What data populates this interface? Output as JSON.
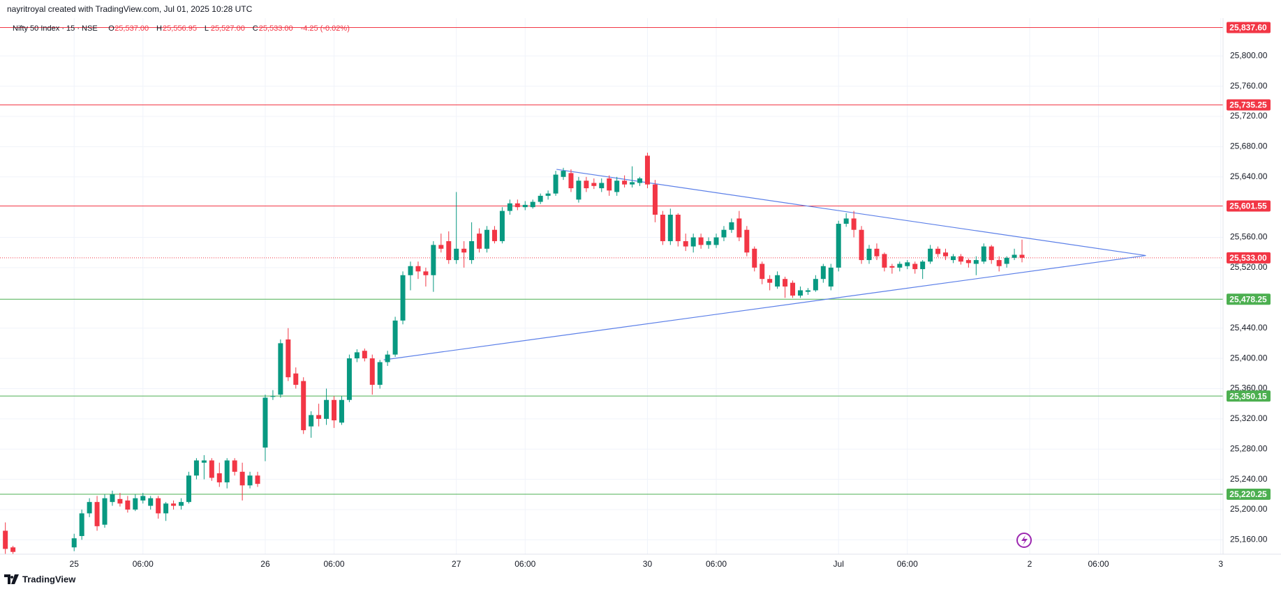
{
  "header": {
    "credit": "nayritroyal created with TradingView.com, Jul 01, 2025 10:28 UTC",
    "symbol": "Nifty 50 Index · 15 · NSE",
    "ohlc": [
      {
        "key": "O",
        "text": "25,537.00"
      },
      {
        "key": "H",
        "text": "25,556.95"
      },
      {
        "key": "L",
        "text": "25,527.00"
      },
      {
        "key": "C",
        "text": "25,533.00"
      }
    ],
    "change": "-4.25 (-0.02%)"
  },
  "footer": {
    "brand": "TradingView"
  },
  "chart_data": {
    "type": "candlestick",
    "up_color": "#089981",
    "down_color": "#f23645",
    "ylim": [
      25141,
      25850
    ],
    "xlim": [
      -9.7,
      150.3
    ],
    "grid": true,
    "yticks": [
      {
        "value": 25800,
        "label": "25,800.00"
      },
      {
        "value": 25760,
        "label": "25,760.00"
      },
      {
        "value": 25720,
        "label": "25,720.00"
      },
      {
        "value": 25680,
        "label": "25,680.00"
      },
      {
        "value": 25640,
        "label": "25,640.00"
      },
      {
        "value": 25560,
        "label": "25,560.00"
      },
      {
        "value": 25520,
        "label": "25,520.00"
      },
      {
        "value": 25440,
        "label": "25,440.00"
      },
      {
        "value": 25400,
        "label": "25,400.00"
      },
      {
        "value": 25360,
        "label": "25,360.00"
      },
      {
        "value": 25320,
        "label": "25,320.00"
      },
      {
        "value": 25280,
        "label": "25,280.00"
      },
      {
        "value": 25240,
        "label": "25,240.00"
      },
      {
        "value": 25200,
        "label": "25,200.00"
      },
      {
        "value": 25160,
        "label": "25,160.00"
      }
    ],
    "xticks": [
      {
        "value": 0,
        "label": "25"
      },
      {
        "value": 9,
        "label": "06:00"
      },
      {
        "value": 25,
        "label": "26"
      },
      {
        "value": 34,
        "label": "06:00"
      },
      {
        "value": 50,
        "label": "27"
      },
      {
        "value": 59,
        "label": "06:00"
      },
      {
        "value": 75,
        "label": "30"
      },
      {
        "value": 84,
        "label": "06:00"
      },
      {
        "value": 100,
        "label": "Jul"
      },
      {
        "value": 109,
        "label": "06:00"
      },
      {
        "value": 125,
        "label": "2"
      },
      {
        "value": 134,
        "label": "06:00"
      },
      {
        "value": 150,
        "label": "3"
      }
    ],
    "hlines": [
      {
        "value": 25837.6,
        "label": "25,837.60",
        "color": "#f23645"
      },
      {
        "value": 25735.25,
        "label": "25,735.25",
        "color": "#f23645"
      },
      {
        "value": 25601.55,
        "label": "25,601.55",
        "color": "#f23645"
      },
      {
        "value": 25478.25,
        "label": "25,478.25",
        "color": "#4caf50"
      },
      {
        "value": 25350.15,
        "label": "25,350.15",
        "color": "#4caf50"
      },
      {
        "value": 25220.25,
        "label": "25,220.25",
        "color": "#4caf50"
      }
    ],
    "last_price": {
      "value": 25533,
      "label": "25,533.00",
      "color": "#f23645"
    },
    "trendlines": [
      {
        "x": [
          63.1,
          140.2
        ],
        "y": [
          25650,
          25536
        ],
        "color": "#5b7fe8"
      },
      {
        "x": [
          40.5,
          140.2
        ],
        "y": [
          25398,
          25536
        ],
        "color": "#5b7fe8"
      }
    ],
    "x": [
      -9,
      -8,
      0,
      1,
      2,
      3,
      4,
      5,
      6,
      7,
      8,
      9,
      10,
      11,
      12,
      13,
      14,
      15,
      16,
      17,
      18,
      19,
      20,
      21,
      22,
      23,
      24,
      25,
      26,
      27,
      28,
      29,
      30,
      31,
      32,
      33,
      34,
      35,
      36,
      37,
      38,
      39,
      40,
      41,
      42,
      43,
      44,
      45,
      46,
      47,
      48,
      49,
      50,
      51,
      52,
      53,
      54,
      55,
      56,
      57,
      58,
      59,
      60,
      61,
      62,
      63,
      64,
      65,
      66,
      67,
      68,
      69,
      70,
      71,
      72,
      73,
      74,
      75,
      76,
      77,
      78,
      79,
      80,
      81,
      82,
      83,
      84,
      85,
      86,
      87,
      88,
      89,
      90,
      91,
      92,
      93,
      94,
      95,
      96,
      97,
      98,
      99,
      100,
      101,
      102,
      103,
      104,
      105,
      106,
      107,
      108,
      109,
      110,
      111,
      112,
      113,
      114,
      115,
      116,
      117,
      118,
      119,
      120,
      121,
      122,
      123,
      124
    ],
    "candles": [
      [
        25172,
        25183,
        25141,
        25148
      ],
      [
        25150,
        25152,
        25141,
        25144
      ],
      [
        25150,
        25168,
        25145,
        25162
      ],
      [
        25165,
        25200,
        25160,
        25195
      ],
      [
        25195,
        25215,
        25190,
        25210
      ],
      [
        25210,
        25218,
        25172,
        25178
      ],
      [
        25180,
        25220,
        25176,
        25215
      ],
      [
        25210,
        25225,
        25205,
        25220
      ],
      [
        25214,
        25222,
        25204,
        25208
      ],
      [
        25212,
        25218,
        25196,
        25200
      ],
      [
        25200,
        25220,
        25198,
        25215
      ],
      [
        25212,
        25222,
        25208,
        25218
      ],
      [
        25205,
        25218,
        25200,
        25215
      ],
      [
        25215,
        25218,
        25188,
        25195
      ],
      [
        25195,
        25210,
        25185,
        25208
      ],
      [
        25208,
        25212,
        25200,
        25205
      ],
      [
        25205,
        25215,
        25200,
        25210
      ],
      [
        25210,
        25250,
        25208,
        25245
      ],
      [
        25245,
        25268,
        25240,
        25265
      ],
      [
        25262,
        25272,
        25240,
        25265
      ],
      [
        25265,
        25268,
        25238,
        25242
      ],
      [
        25248,
        25262,
        25230,
        25236
      ],
      [
        25236,
        25268,
        25228,
        25265
      ],
      [
        25265,
        25268,
        25245,
        25250
      ],
      [
        25250,
        25262,
        25212,
        25232
      ],
      [
        25232,
        25250,
        25228,
        25245
      ],
      [
        25245,
        25250,
        25230,
        25234
      ],
      [
        25282,
        25352,
        25264,
        25348
      ],
      [
        25350,
        25358,
        25345,
        25350
      ],
      [
        25352,
        25425,
        25348,
        25420
      ],
      [
        25425,
        25440,
        25370,
        25375
      ],
      [
        25380,
        25388,
        25360,
        25365
      ],
      [
        25370,
        25375,
        25300,
        25305
      ],
      [
        25310,
        25330,
        25295,
        25325
      ],
      [
        25325,
        25340,
        25310,
        25320
      ],
      [
        25320,
        25360,
        25312,
        25345
      ],
      [
        25345,
        25350,
        25308,
        25318
      ],
      [
        25315,
        25350,
        25312,
        25345
      ],
      [
        25345,
        25405,
        25342,
        25400
      ],
      [
        25400,
        25412,
        25395,
        25408
      ],
      [
        25410,
        25413,
        25396,
        25400
      ],
      [
        25400,
        25405,
        25352,
        25365
      ],
      [
        25365,
        25398,
        25360,
        25395
      ],
      [
        25395,
        25410,
        25390,
        25405
      ],
      [
        25405,
        25455,
        25402,
        25450
      ],
      [
        25450,
        25515,
        25445,
        25510
      ],
      [
        25510,
        25528,
        25490,
        25522
      ],
      [
        25522,
        25528,
        25505,
        25515
      ],
      [
        25515,
        25520,
        25495,
        25510
      ],
      [
        25510,
        25555,
        25488,
        25550
      ],
      [
        25550,
        25565,
        25540,
        25545
      ],
      [
        25555,
        25568,
        25525,
        25530
      ],
      [
        25530,
        25620,
        25525,
        25545
      ],
      [
        25545,
        25555,
        25520,
        25540
      ],
      [
        25530,
        25580,
        25525,
        25555
      ],
      [
        25565,
        25572,
        25540,
        25545
      ],
      [
        25545,
        25575,
        25540,
        25570
      ],
      [
        25570,
        25575,
        25552,
        25555
      ],
      [
        25555,
        25600,
        25552,
        25595
      ],
      [
        25595,
        25610,
        25590,
        25605
      ],
      [
        25605,
        25610,
        25596,
        25600
      ],
      [
        25600,
        25608,
        25596,
        25603
      ],
      [
        25600,
        25610,
        25598,
        25607
      ],
      [
        25607,
        25618,
        25604,
        25615
      ],
      [
        25615,
        25622,
        25610,
        25618
      ],
      [
        25618,
        25648,
        25615,
        25643
      ],
      [
        25640,
        25652,
        25636,
        25648
      ],
      [
        25645,
        25650,
        25620,
        25625
      ],
      [
        25610,
        25640,
        25606,
        25635
      ],
      [
        25635,
        25640,
        25620,
        25625
      ],
      [
        25632,
        25638,
        25624,
        25628
      ],
      [
        25625,
        25638,
        25620,
        25632
      ],
      [
        25638,
        25642,
        25615,
        25622
      ],
      [
        25620,
        25640,
        25615,
        25635
      ],
      [
        25635,
        25642,
        25626,
        25630
      ],
      [
        25630,
        25654,
        25626,
        25633
      ],
      [
        25632,
        25640,
        25628,
        25638
      ],
      [
        25668,
        25672,
        25625,
        25630
      ],
      [
        25630,
        25636,
        25580,
        25590
      ],
      [
        25590,
        25595,
        25550,
        25555
      ],
      [
        25555,
        25598,
        25550,
        25590
      ],
      [
        25590,
        25592,
        25548,
        25555
      ],
      [
        25555,
        25565,
        25542,
        25548
      ],
      [
        25548,
        25565,
        25540,
        25560
      ],
      [
        25560,
        25565,
        25545,
        25550
      ],
      [
        25550,
        25560,
        25545,
        25555
      ],
      [
        25550,
        25565,
        25546,
        25560
      ],
      [
        25560,
        25575,
        25555,
        25570
      ],
      [
        25570,
        25585,
        25566,
        25580
      ],
      [
        25585,
        25595,
        25555,
        25560
      ],
      [
        25570,
        25575,
        25535,
        25540
      ],
      [
        25545,
        25548,
        25515,
        25520
      ],
      [
        25525,
        25528,
        25498,
        25505
      ],
      [
        25505,
        25510,
        25490,
        25500
      ],
      [
        25495,
        25515,
        25492,
        25510
      ],
      [
        25505,
        25508,
        25480,
        25495
      ],
      [
        25500,
        25503,
        25480,
        25483
      ],
      [
        25483,
        25495,
        25480,
        25490
      ],
      [
        25488,
        25493,
        25484,
        25490
      ],
      [
        25490,
        25510,
        25488,
        25505
      ],
      [
        25505,
        25525,
        25500,
        25522
      ],
      [
        25495,
        25525,
        25490,
        25520
      ],
      [
        25520,
        25582,
        25515,
        25578
      ],
      [
        25578,
        25592,
        25574,
        25585
      ],
      [
        25585,
        25595,
        25560,
        25570
      ],
      [
        25570,
        25575,
        25525,
        25530
      ],
      [
        25530,
        25550,
        25525,
        25545
      ],
      [
        25545,
        25552,
        25530,
        25535
      ],
      [
        25538,
        25540,
        25515,
        25520
      ],
      [
        25522,
        25525,
        25512,
        25520
      ],
      [
        25520,
        25528,
        25515,
        25525
      ],
      [
        25522,
        25530,
        25518,
        25527
      ],
      [
        25525,
        25528,
        25512,
        25518
      ],
      [
        25518,
        25530,
        25505,
        25528
      ],
      [
        25528,
        25550,
        25525,
        25545
      ],
      [
        25545,
        25548,
        25534,
        25538
      ],
      [
        25540,
        25545,
        25530,
        25535
      ],
      [
        25530,
        25538,
        25526,
        25535
      ],
      [
        25535,
        25538,
        25524,
        25528
      ],
      [
        25530,
        25532,
        25520,
        25526
      ],
      [
        25525,
        25535,
        25510,
        25530
      ],
      [
        25528,
        25552,
        25525,
        25548
      ],
      [
        25548,
        25550,
        25525,
        25530
      ],
      [
        25530,
        25535,
        25515,
        25522
      ],
      [
        25525,
        25535,
        25520,
        25533
      ],
      [
        25533,
        25545,
        25530,
        25537
      ],
      [
        25537,
        25557,
        25527,
        25533
      ]
    ]
  }
}
